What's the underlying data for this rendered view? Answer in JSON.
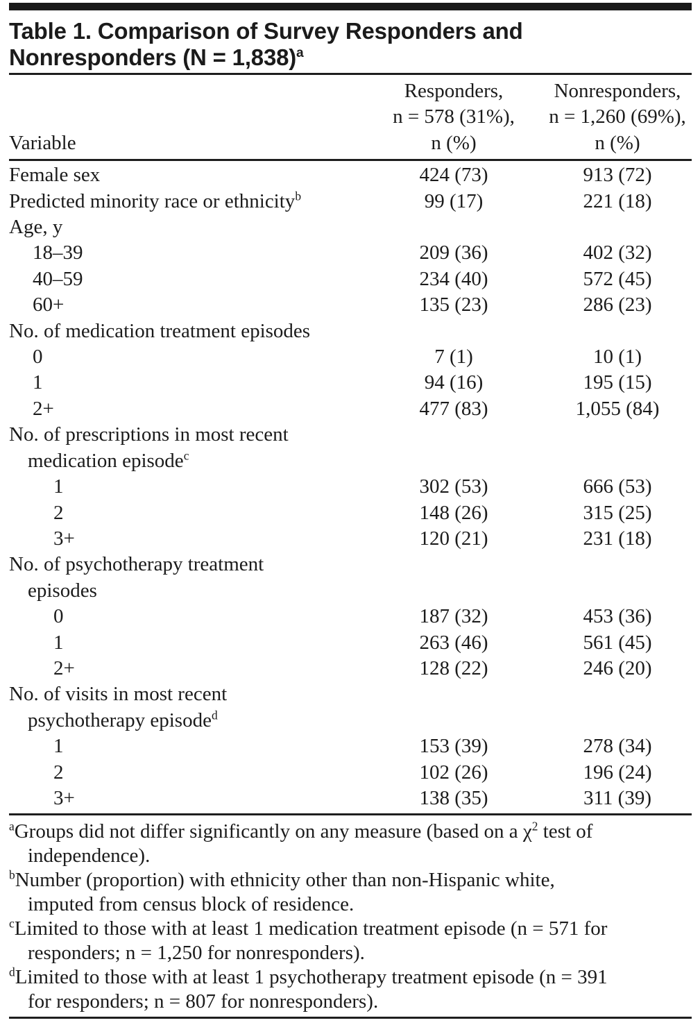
{
  "page": {
    "background_color": "#ffffff",
    "text_color": "#1b1b1b",
    "bar_color": "#191919"
  },
  "title": {
    "line1": "Table 1. Comparison of Survey Responders and",
    "line2": "Nonresponders (N = 1,838)",
    "line2_sup": "a"
  },
  "header": {
    "variable_label": "Variable",
    "responders": [
      "Responders,",
      "n = 578 (31%),",
      "n (%)"
    ],
    "nonresponders": [
      "Nonresponders,",
      "n = 1,260 (69%),",
      "n (%)"
    ]
  },
  "rows": [
    {
      "label_lines": [
        "Female sex"
      ],
      "indent": 0,
      "responders": "424 (73)",
      "nonresponders": "913 (72)"
    },
    {
      "label_lines": [
        "Predicted minority race or ethnicity"
      ],
      "sup": "b",
      "indent": 0,
      "responders": "99 (17)",
      "nonresponders": "221 (18)"
    },
    {
      "label_lines": [
        "Age, y"
      ],
      "indent": 0,
      "responders": "",
      "nonresponders": ""
    },
    {
      "label_lines": [
        "18–39"
      ],
      "indent": 1,
      "responders": "209 (36)",
      "nonresponders": "402 (32)"
    },
    {
      "label_lines": [
        "40–59"
      ],
      "indent": 1,
      "responders": "234 (40)",
      "nonresponders": "572 (45)"
    },
    {
      "label_lines": [
        "60+"
      ],
      "indent": 1,
      "responders": "135 (23)",
      "nonresponders": "286 (23)"
    },
    {
      "label_lines": [
        "No. of medication treatment episodes"
      ],
      "indent": 0,
      "responders": "",
      "nonresponders": ""
    },
    {
      "label_lines": [
        "0"
      ],
      "indent": 1,
      "responders": "7 (1)",
      "nonresponders": "10 (1)"
    },
    {
      "label_lines": [
        "1"
      ],
      "indent": 1,
      "responders": "94 (16)",
      "nonresponders": "195 (15)"
    },
    {
      "label_lines": [
        "2+"
      ],
      "indent": 1,
      "responders": "477 (83)",
      "nonresponders": "1,055 (84)"
    },
    {
      "label_lines": [
        "No. of prescriptions in most recent",
        "medication episode"
      ],
      "sup": "c",
      "indent": 0,
      "responders": "",
      "nonresponders": ""
    },
    {
      "label_lines": [
        "1"
      ],
      "indent": 2,
      "responders": "302 (53)",
      "nonresponders": "666 (53)"
    },
    {
      "label_lines": [
        "2"
      ],
      "indent": 2,
      "responders": "148 (26)",
      "nonresponders": "315 (25)"
    },
    {
      "label_lines": [
        "3+"
      ],
      "indent": 2,
      "responders": "120 (21)",
      "nonresponders": "231 (18)"
    },
    {
      "label_lines": [
        "No. of psychotherapy treatment",
        "episodes"
      ],
      "indent": 0,
      "responders": "",
      "nonresponders": ""
    },
    {
      "label_lines": [
        "0"
      ],
      "indent": 2,
      "responders": "187 (32)",
      "nonresponders": "453 (36)"
    },
    {
      "label_lines": [
        "1"
      ],
      "indent": 2,
      "responders": "263 (46)",
      "nonresponders": "561 (45)"
    },
    {
      "label_lines": [
        "2+"
      ],
      "indent": 2,
      "responders": "128 (22)",
      "nonresponders": "246 (20)"
    },
    {
      "label_lines": [
        "No. of visits in most recent",
        "psychotherapy episode"
      ],
      "sup": "d",
      "indent": 0,
      "responders": "",
      "nonresponders": ""
    },
    {
      "label_lines": [
        "1"
      ],
      "indent": 2,
      "responders": "153 (39)",
      "nonresponders": "278 (34)"
    },
    {
      "label_lines": [
        "2"
      ],
      "indent": 2,
      "responders": "102 (26)",
      "nonresponders": "196 (24)"
    },
    {
      "label_lines": [
        "3+"
      ],
      "indent": 2,
      "responders": "138 (35)",
      "nonresponders": "311 (39)"
    }
  ],
  "footnotes": [
    {
      "marker": "a",
      "segments": [
        "Groups did not differ significantly on any measure (based on a χ",
        {
          "sup": "2"
        },
        " test of",
        {
          "br": true
        },
        "independence)."
      ]
    },
    {
      "marker": "b",
      "segments": [
        "Number (proportion) with ethnicity other than non-Hispanic white,",
        {
          "br": true
        },
        "imputed from census block of residence."
      ]
    },
    {
      "marker": "c",
      "segments": [
        "Limited to those with at least 1 medication treatment episode (n = 571 for",
        {
          "br": true
        },
        "responders; n = 1,250 for nonresponders)."
      ]
    },
    {
      "marker": "d",
      "segments": [
        "Limited to those with at least 1 psychotherapy treatment episode (n = 391",
        {
          "br": true
        },
        "for responders; n = 807 for nonresponders)."
      ]
    }
  ]
}
